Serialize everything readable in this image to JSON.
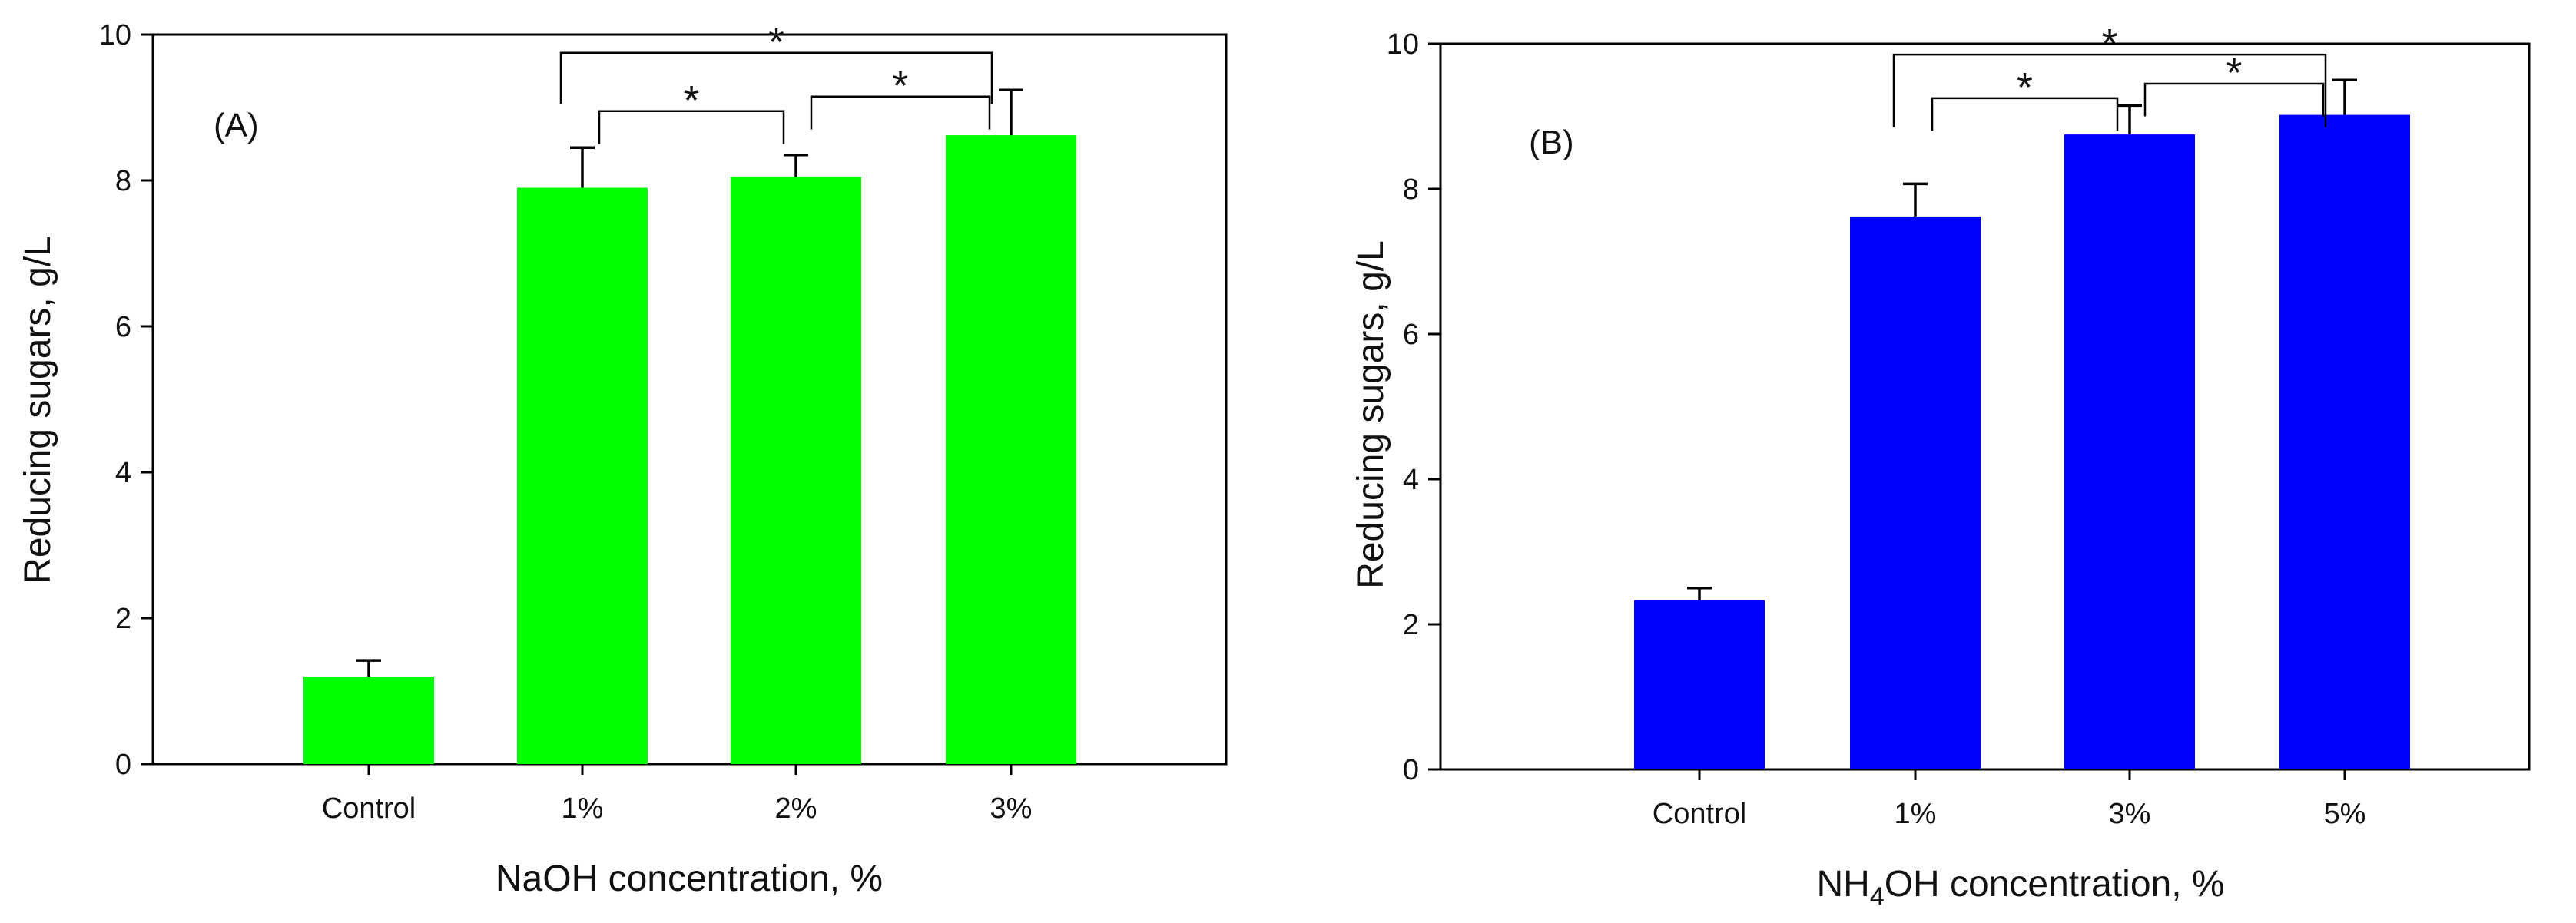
{
  "chart_data": [
    {
      "type": "bar",
      "panel_label": "(A)",
      "categories": [
        "Control",
        "1%",
        "2%",
        "3%"
      ],
      "values": [
        1.2,
        7.9,
        8.05,
        8.62
      ],
      "errors": [
        0.22,
        0.55,
        0.3,
        0.62
      ],
      "bar_color": "#00ff00",
      "xlabel": "NaOH concentration, %",
      "ylabel": "Reducing sugars, g/L",
      "ylim": [
        0,
        10
      ],
      "yticks": [
        "0",
        "2",
        "4",
        "6",
        "8",
        "10"
      ],
      "significance": [
        {
          "from": 1,
          "to": 3,
          "label": "*"
        },
        {
          "from": 1,
          "to": 2,
          "label": "*"
        },
        {
          "from": 2,
          "to": 3,
          "label": "*"
        }
      ]
    },
    {
      "type": "bar",
      "panel_label": "(B)",
      "categories": [
        "Control",
        "1%",
        "3%",
        "5%"
      ],
      "values": [
        2.33,
        7.62,
        8.75,
        9.02
      ],
      "errors": [
        0.17,
        0.45,
        0.4,
        0.48
      ],
      "bar_color": "#0000ff",
      "xlabel": "NH4OH concentration, %",
      "xlabel_parts": {
        "pre": "NH",
        "sub": "4",
        "post": "OH concentration, %"
      },
      "ylabel": "Reducing sugars, g/L",
      "ylim": [
        0,
        10
      ],
      "yticks": [
        "0",
        "2",
        "4",
        "6",
        "8",
        "10"
      ],
      "significance": [
        {
          "from": 1,
          "to": 3,
          "label": "*"
        },
        {
          "from": 1,
          "to": 2,
          "label": "*"
        },
        {
          "from": 2,
          "to": 3,
          "label": "*"
        }
      ]
    }
  ]
}
